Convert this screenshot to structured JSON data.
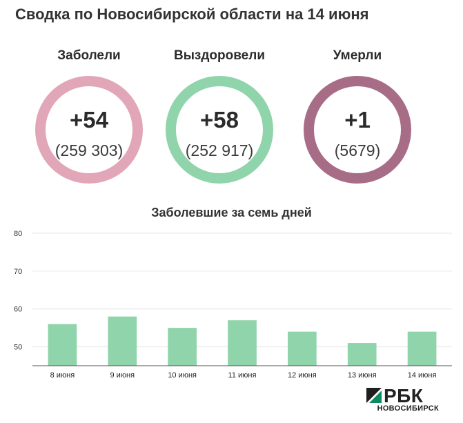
{
  "header": {
    "title": "Сводка по Новосибирской области на 14 июня"
  },
  "stats": [
    {
      "label": "Заболели",
      "delta": "+54",
      "total": "(259 303)",
      "color": "#e1a6b8"
    },
    {
      "label": "Выздоровели",
      "delta": "+58",
      "total": "(252 917)",
      "color": "#8fd4aa"
    },
    {
      "label": "Умерли",
      "delta": "+1",
      "total": "(5679)",
      "color": "#a86d86"
    }
  ],
  "chart_data": {
    "type": "bar",
    "title": "Заболевшие за семь дней",
    "categories": [
      "8 июня",
      "9 июня",
      "10 июня",
      "11 июня",
      "12 июня",
      "13 июня",
      "14 июня"
    ],
    "values": [
      56,
      58,
      55,
      57,
      54,
      51,
      54
    ],
    "ylim": [
      45,
      80
    ],
    "yticks": [
      50,
      60,
      70,
      80
    ],
    "grid": true,
    "bar_color": "#8fd4aa"
  },
  "brand": {
    "name": "РБК",
    "sub": "НОВОСИБИРСК"
  }
}
